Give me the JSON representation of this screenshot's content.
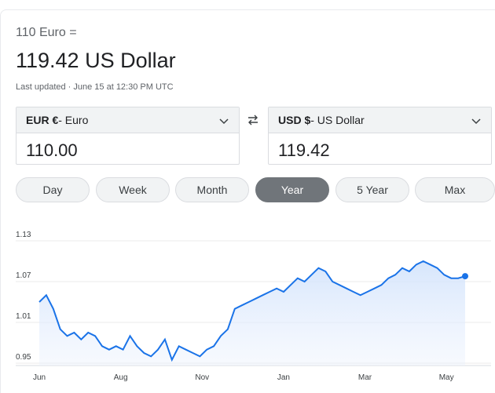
{
  "header": {
    "from_text": "110 Euro =",
    "to_text": "119.42 US Dollar",
    "updated": "Last updated · June 15 at 12:30 PM UTC"
  },
  "converter": {
    "from": {
      "code": "EUR €",
      "name": " - Euro",
      "amount": "110.00"
    },
    "to": {
      "code": "USD $",
      "name": " - US Dollar",
      "amount": "119.42"
    },
    "swap_icon": "swap-arrows-icon"
  },
  "ranges": [
    "Day",
    "Week",
    "Month",
    "Year",
    "5 Year",
    "Max"
  ],
  "active_range": "Year",
  "colors": {
    "line": "#1a73e8",
    "fill_top": "#d2e3fc",
    "active_range_bg": "#70757a",
    "grid": "#ebebeb"
  },
  "chart_data": {
    "type": "area",
    "y_ticks": [
      "1.13",
      "1.07",
      "1.01",
      "0.95"
    ],
    "ylim": [
      0.95,
      1.13
    ],
    "x_ticks": [
      "Jun",
      "Aug",
      "Nov",
      "Jan",
      "Mar",
      "May"
    ],
    "x_tick_index": [
      0,
      5,
      10,
      15,
      20,
      25
    ],
    "grid": true,
    "points": [
      1.04,
      1.05,
      1.03,
      1.0,
      0.99,
      0.995,
      0.985,
      0.995,
      0.99,
      0.975,
      0.97,
      0.975,
      0.97,
      0.99,
      0.975,
      0.965,
      0.96,
      0.97,
      0.985,
      0.955,
      0.975,
      0.97,
      0.965,
      0.96,
      0.97,
      0.975,
      0.99,
      1.0,
      1.03,
      1.035,
      1.04,
      1.045,
      1.05,
      1.055,
      1.06,
      1.055,
      1.065,
      1.075,
      1.07,
      1.08,
      1.09,
      1.085,
      1.07,
      1.065,
      1.06,
      1.055,
      1.05,
      1.055,
      1.06,
      1.065,
      1.075,
      1.08,
      1.09,
      1.085,
      1.095,
      1.1,
      1.095,
      1.09,
      1.08,
      1.075,
      1.075,
      1.078
    ]
  }
}
